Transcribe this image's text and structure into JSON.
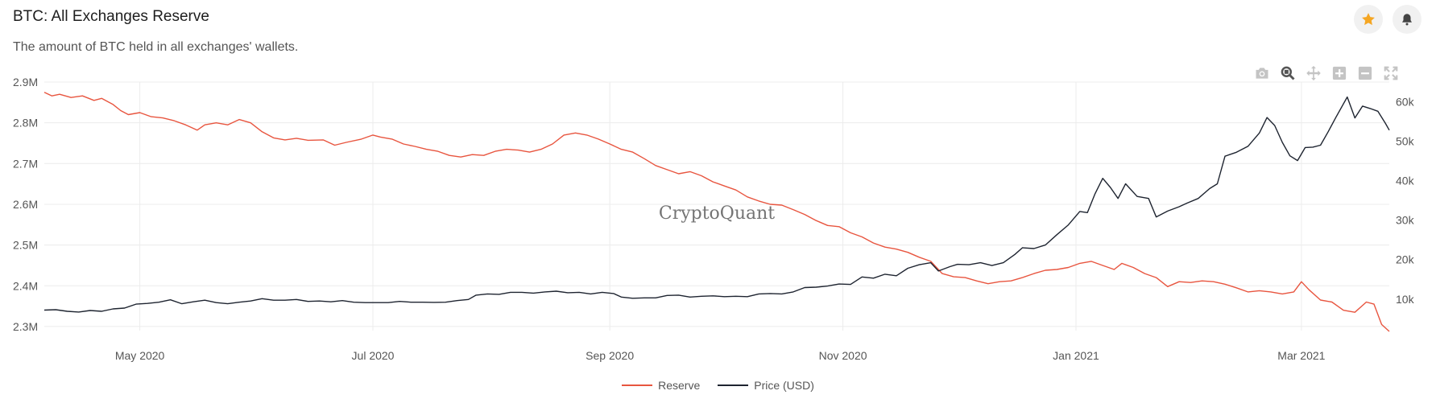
{
  "header": {
    "title": "BTC: All Exchanges Reserve",
    "subtitle": "The amount of BTC held in all exchanges' wallets."
  },
  "watermark": "CryptoQuant",
  "colors": {
    "reserve": "#e8553f",
    "price": "#1e2430",
    "star": "#f5a623",
    "grid": "#ececec"
  },
  "icons": {
    "star": "star-icon",
    "bell": "bell-icon",
    "toolbar": [
      "camera-icon",
      "zoom-icon",
      "pan-icon",
      "zoom-in-icon",
      "zoom-out-icon",
      "autoscale-icon"
    ]
  },
  "legend": [
    {
      "label": "Reserve",
      "color": "#e8553f"
    },
    {
      "label": "Price (USD)",
      "color": "#1e2430"
    }
  ],
  "chart_data": {
    "type": "line",
    "title": "BTC: All Exchanges Reserve",
    "subtitle": "The amount of BTC held in all exchanges' wallets.",
    "x_range": [
      "2020-04-06",
      "2021-03-24"
    ],
    "x_ticks": [
      {
        "date": "2020-05-01",
        "label": "May 2020"
      },
      {
        "date": "2020-07-01",
        "label": "Jul 2020"
      },
      {
        "date": "2020-09-01",
        "label": "Sep 2020"
      },
      {
        "date": "2020-11-01",
        "label": "Nov 2020"
      },
      {
        "date": "2021-01-01",
        "label": "Jan 2021"
      },
      {
        "date": "2021-03-01",
        "label": "Mar 2021"
      }
    ],
    "y_left": {
      "min": 2.29,
      "max": 2.9,
      "ticks": [
        2.3,
        2.4,
        2.5,
        2.6,
        2.7,
        2.8,
        2.9
      ],
      "tick_labels": [
        "2.3M",
        "2.4M",
        "2.5M",
        "2.6M",
        "2.7M",
        "2.8M",
        "2.9M"
      ]
    },
    "y_right": {
      "min": 2000,
      "max": 65000,
      "ticks": [
        10000,
        20000,
        30000,
        40000,
        50000,
        60000
      ],
      "tick_labels": [
        "10k",
        "20k",
        "30k",
        "40k",
        "50k",
        "60k"
      ]
    },
    "grid": true,
    "legend_position": "bottom-center",
    "series": [
      {
        "name": "Reserve",
        "axis": "left",
        "points": [
          [
            "2020-04-06",
            2.875
          ],
          [
            "2020-04-08",
            2.866
          ],
          [
            "2020-04-10",
            2.87
          ],
          [
            "2020-04-13",
            2.862
          ],
          [
            "2020-04-16",
            2.866
          ],
          [
            "2020-04-19",
            2.855
          ],
          [
            "2020-04-21",
            2.86
          ],
          [
            "2020-04-24",
            2.845
          ],
          [
            "2020-04-26",
            2.83
          ],
          [
            "2020-04-28",
            2.82
          ],
          [
            "2020-05-01",
            2.825
          ],
          [
            "2020-05-04",
            2.815
          ],
          [
            "2020-05-07",
            2.812
          ],
          [
            "2020-05-10",
            2.805
          ],
          [
            "2020-05-13",
            2.795
          ],
          [
            "2020-05-16",
            2.782
          ],
          [
            "2020-05-18",
            2.795
          ],
          [
            "2020-05-21",
            2.8
          ],
          [
            "2020-05-24",
            2.795
          ],
          [
            "2020-05-27",
            2.808
          ],
          [
            "2020-05-30",
            2.8
          ],
          [
            "2020-06-02",
            2.778
          ],
          [
            "2020-06-05",
            2.763
          ],
          [
            "2020-06-08",
            2.758
          ],
          [
            "2020-06-11",
            2.762
          ],
          [
            "2020-06-14",
            2.757
          ],
          [
            "2020-06-18",
            2.758
          ],
          [
            "2020-06-21",
            2.745
          ],
          [
            "2020-06-24",
            2.752
          ],
          [
            "2020-06-28",
            2.76
          ],
          [
            "2020-07-01",
            2.77
          ],
          [
            "2020-07-03",
            2.765
          ],
          [
            "2020-07-06",
            2.76
          ],
          [
            "2020-07-09",
            2.748
          ],
          [
            "2020-07-12",
            2.742
          ],
          [
            "2020-07-15",
            2.735
          ],
          [
            "2020-07-18",
            2.73
          ],
          [
            "2020-07-21",
            2.72
          ],
          [
            "2020-07-24",
            2.716
          ],
          [
            "2020-07-27",
            2.722
          ],
          [
            "2020-07-30",
            2.72
          ],
          [
            "2020-08-02",
            2.73
          ],
          [
            "2020-08-05",
            2.735
          ],
          [
            "2020-08-08",
            2.733
          ],
          [
            "2020-08-11",
            2.728
          ],
          [
            "2020-08-14",
            2.735
          ],
          [
            "2020-08-17",
            2.748
          ],
          [
            "2020-08-20",
            2.77
          ],
          [
            "2020-08-23",
            2.775
          ],
          [
            "2020-08-26",
            2.77
          ],
          [
            "2020-08-29",
            2.76
          ],
          [
            "2020-09-01",
            2.748
          ],
          [
            "2020-09-04",
            2.735
          ],
          [
            "2020-09-07",
            2.728
          ],
          [
            "2020-09-10",
            2.712
          ],
          [
            "2020-09-13",
            2.695
          ],
          [
            "2020-09-16",
            2.685
          ],
          [
            "2020-09-19",
            2.675
          ],
          [
            "2020-09-22",
            2.68
          ],
          [
            "2020-09-25",
            2.67
          ],
          [
            "2020-09-28",
            2.655
          ],
          [
            "2020-10-01",
            2.645
          ],
          [
            "2020-10-04",
            2.635
          ],
          [
            "2020-10-07",
            2.618
          ],
          [
            "2020-10-10",
            2.608
          ],
          [
            "2020-10-13",
            2.6
          ],
          [
            "2020-10-16",
            2.598
          ],
          [
            "2020-10-19",
            2.587
          ],
          [
            "2020-10-22",
            2.575
          ],
          [
            "2020-10-25",
            2.56
          ],
          [
            "2020-10-28",
            2.548
          ],
          [
            "2020-10-31",
            2.545
          ],
          [
            "2020-11-03",
            2.53
          ],
          [
            "2020-11-06",
            2.52
          ],
          [
            "2020-11-09",
            2.505
          ],
          [
            "2020-11-12",
            2.495
          ],
          [
            "2020-11-15",
            2.49
          ],
          [
            "2020-11-18",
            2.482
          ],
          [
            "2020-11-21",
            2.47
          ],
          [
            "2020-11-24",
            2.46
          ],
          [
            "2020-11-27",
            2.43
          ],
          [
            "2020-11-30",
            2.422
          ],
          [
            "2020-12-03",
            2.42
          ],
          [
            "2020-12-06",
            2.412
          ],
          [
            "2020-12-09",
            2.405
          ],
          [
            "2020-12-12",
            2.41
          ],
          [
            "2020-12-15",
            2.412
          ],
          [
            "2020-12-18",
            2.42
          ],
          [
            "2020-12-21",
            2.43
          ],
          [
            "2020-12-24",
            2.438
          ],
          [
            "2020-12-27",
            2.44
          ],
          [
            "2020-12-30",
            2.445
          ],
          [
            "2021-01-02",
            2.455
          ],
          [
            "2021-01-05",
            2.46
          ],
          [
            "2021-01-08",
            2.45
          ],
          [
            "2021-01-11",
            2.44
          ],
          [
            "2021-01-13",
            2.455
          ],
          [
            "2021-01-16",
            2.445
          ],
          [
            "2021-01-19",
            2.43
          ],
          [
            "2021-01-22",
            2.42
          ],
          [
            "2021-01-25",
            2.398
          ],
          [
            "2021-01-28",
            2.41
          ],
          [
            "2021-01-31",
            2.408
          ],
          [
            "2021-02-03",
            2.412
          ],
          [
            "2021-02-06",
            2.41
          ],
          [
            "2021-02-09",
            2.404
          ],
          [
            "2021-02-12",
            2.395
          ],
          [
            "2021-02-15",
            2.385
          ],
          [
            "2021-02-18",
            2.388
          ],
          [
            "2021-02-21",
            2.385
          ],
          [
            "2021-02-24",
            2.38
          ],
          [
            "2021-02-27",
            2.385
          ],
          [
            "2021-03-01",
            2.41
          ],
          [
            "2021-03-03",
            2.39
          ],
          [
            "2021-03-06",
            2.365
          ],
          [
            "2021-03-09",
            2.36
          ],
          [
            "2021-03-12",
            2.34
          ],
          [
            "2021-03-15",
            2.335
          ],
          [
            "2021-03-18",
            2.36
          ],
          [
            "2021-03-20",
            2.355
          ],
          [
            "2021-03-22",
            2.305
          ],
          [
            "2021-03-24",
            2.288
          ]
        ]
      },
      {
        "name": "Price (USD)",
        "axis": "right",
        "points": [
          [
            "2020-04-06",
            7200
          ],
          [
            "2020-04-09",
            7300
          ],
          [
            "2020-04-12",
            6900
          ],
          [
            "2020-04-15",
            6700
          ],
          [
            "2020-04-18",
            7100
          ],
          [
            "2020-04-21",
            6900
          ],
          [
            "2020-04-24",
            7500
          ],
          [
            "2020-04-27",
            7700
          ],
          [
            "2020-04-30",
            8700
          ],
          [
            "2020-05-03",
            8900
          ],
          [
            "2020-05-06",
            9200
          ],
          [
            "2020-05-09",
            9800
          ],
          [
            "2020-05-12",
            8800
          ],
          [
            "2020-05-15",
            9300
          ],
          [
            "2020-05-18",
            9700
          ],
          [
            "2020-05-21",
            9100
          ],
          [
            "2020-05-24",
            8800
          ],
          [
            "2020-05-27",
            9200
          ],
          [
            "2020-05-30",
            9500
          ],
          [
            "2020-06-02",
            10100
          ],
          [
            "2020-06-05",
            9700
          ],
          [
            "2020-06-08",
            9700
          ],
          [
            "2020-06-11",
            9900
          ],
          [
            "2020-06-14",
            9400
          ],
          [
            "2020-06-17",
            9500
          ],
          [
            "2020-06-20",
            9300
          ],
          [
            "2020-06-23",
            9600
          ],
          [
            "2020-06-26",
            9200
          ],
          [
            "2020-06-29",
            9100
          ],
          [
            "2020-07-02",
            9100
          ],
          [
            "2020-07-05",
            9100
          ],
          [
            "2020-07-08",
            9400
          ],
          [
            "2020-07-11",
            9200
          ],
          [
            "2020-07-14",
            9200
          ],
          [
            "2020-07-17",
            9150
          ],
          [
            "2020-07-20",
            9200
          ],
          [
            "2020-07-23",
            9600
          ],
          [
            "2020-07-26",
            9900
          ],
          [
            "2020-07-28",
            11000
          ],
          [
            "2020-07-31",
            11300
          ],
          [
            "2020-08-03",
            11200
          ],
          [
            "2020-08-06",
            11700
          ],
          [
            "2020-08-09",
            11700
          ],
          [
            "2020-08-12",
            11500
          ],
          [
            "2020-08-15",
            11800
          ],
          [
            "2020-08-18",
            12000
          ],
          [
            "2020-08-21",
            11600
          ],
          [
            "2020-08-24",
            11700
          ],
          [
            "2020-08-27",
            11300
          ],
          [
            "2020-08-30",
            11700
          ],
          [
            "2020-09-02",
            11400
          ],
          [
            "2020-09-04",
            10500
          ],
          [
            "2020-09-07",
            10200
          ],
          [
            "2020-09-10",
            10300
          ],
          [
            "2020-09-13",
            10300
          ],
          [
            "2020-09-16",
            10900
          ],
          [
            "2020-09-19",
            11000
          ],
          [
            "2020-09-22",
            10500
          ],
          [
            "2020-09-25",
            10700
          ],
          [
            "2020-09-28",
            10800
          ],
          [
            "2020-10-01",
            10600
          ],
          [
            "2020-10-04",
            10700
          ],
          [
            "2020-10-07",
            10600
          ],
          [
            "2020-10-10",
            11300
          ],
          [
            "2020-10-13",
            11400
          ],
          [
            "2020-10-16",
            11300
          ],
          [
            "2020-10-19",
            11800
          ],
          [
            "2020-10-22",
            12900
          ],
          [
            "2020-10-25",
            13000
          ],
          [
            "2020-10-28",
            13300
          ],
          [
            "2020-10-31",
            13800
          ],
          [
            "2020-11-03",
            13700
          ],
          [
            "2020-11-06",
            15600
          ],
          [
            "2020-11-09",
            15300
          ],
          [
            "2020-11-12",
            16300
          ],
          [
            "2020-11-15",
            15900
          ],
          [
            "2020-11-18",
            17800
          ],
          [
            "2020-11-21",
            18700
          ],
          [
            "2020-11-24",
            19200
          ],
          [
            "2020-11-26",
            17100
          ],
          [
            "2020-11-29",
            18200
          ],
          [
            "2020-12-01",
            18800
          ],
          [
            "2020-12-04",
            18700
          ],
          [
            "2020-12-07",
            19200
          ],
          [
            "2020-12-10",
            18500
          ],
          [
            "2020-12-13",
            19200
          ],
          [
            "2020-12-16",
            21300
          ],
          [
            "2020-12-18",
            23000
          ],
          [
            "2020-12-21",
            22800
          ],
          [
            "2020-12-24",
            23700
          ],
          [
            "2020-12-27",
            26300
          ],
          [
            "2020-12-30",
            28800
          ],
          [
            "2021-01-02",
            32200
          ],
          [
            "2021-01-04",
            31900
          ],
          [
            "2021-01-06",
            36700
          ],
          [
            "2021-01-08",
            40600
          ],
          [
            "2021-01-10",
            38300
          ],
          [
            "2021-01-12",
            35500
          ],
          [
            "2021-01-14",
            39200
          ],
          [
            "2021-01-17",
            36000
          ],
          [
            "2021-01-20",
            35500
          ],
          [
            "2021-01-22",
            30800
          ],
          [
            "2021-01-25",
            32300
          ],
          [
            "2021-01-28",
            33400
          ],
          [
            "2021-01-30",
            34300
          ],
          [
            "2021-02-02",
            35500
          ],
          [
            "2021-02-05",
            38000
          ],
          [
            "2021-02-07",
            39200
          ],
          [
            "2021-02-09",
            46200
          ],
          [
            "2021-02-12",
            47200
          ],
          [
            "2021-02-15",
            48700
          ],
          [
            "2021-02-18",
            52100
          ],
          [
            "2021-02-20",
            56000
          ],
          [
            "2021-02-22",
            54000
          ],
          [
            "2021-02-24",
            49700
          ],
          [
            "2021-02-26",
            46300
          ],
          [
            "2021-02-28",
            45100
          ],
          [
            "2021-03-02",
            48400
          ],
          [
            "2021-03-04",
            48500
          ],
          [
            "2021-03-06",
            49000
          ],
          [
            "2021-03-08",
            52400
          ],
          [
            "2021-03-10",
            56000
          ],
          [
            "2021-03-13",
            61200
          ],
          [
            "2021-03-15",
            55900
          ],
          [
            "2021-03-17",
            58900
          ],
          [
            "2021-03-19",
            58300
          ],
          [
            "2021-03-21",
            57600
          ],
          [
            "2021-03-23",
            54500
          ],
          [
            "2021-03-24",
            52800
          ]
        ]
      }
    ]
  }
}
